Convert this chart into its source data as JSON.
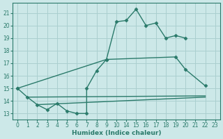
{
  "bg_color": "#cce8e8",
  "grid_color": "#aacfcf",
  "line_color": "#2a7a6a",
  "line_width": 1.0,
  "marker": "D",
  "marker_size": 2.5,
  "xlabel": "Humidex (Indice chaleur)",
  "yticks": [
    13,
    14,
    15,
    16,
    17,
    18,
    19,
    20,
    21
  ],
  "ylim": [
    12.5,
    21.8
  ],
  "xtick_labels": [
    "0",
    "1",
    "2",
    "3",
    "4",
    "5",
    "6",
    "7",
    "8",
    "9",
    "10",
    "14",
    "15",
    "16",
    "17",
    "18",
    "19",
    "20",
    "21",
    "22",
    "23"
  ],
  "line1_xidx": [
    0,
    1,
    2,
    3,
    4,
    5,
    6,
    7,
    7,
    8,
    9,
    10,
    11,
    12,
    13,
    14,
    15,
    16,
    17
  ],
  "line1_y": [
    15,
    14.3,
    13.7,
    13.3,
    13.8,
    13.2,
    13.0,
    13.0,
    15.0,
    16.4,
    17.3,
    20.3,
    20.4,
    21.3,
    20.0,
    20.2,
    19.0,
    19.2,
    19.0
  ],
  "line2_xidx": [
    0,
    9,
    16,
    17,
    19
  ],
  "line2_y": [
    15.0,
    17.3,
    17.5,
    16.5,
    15.2
  ],
  "line3_xidx": [
    1,
    19
  ],
  "line3_y": [
    14.3,
    14.4
  ],
  "line4_xidx": [
    2,
    19
  ],
  "line4_y": [
    13.7,
    14.3
  ]
}
